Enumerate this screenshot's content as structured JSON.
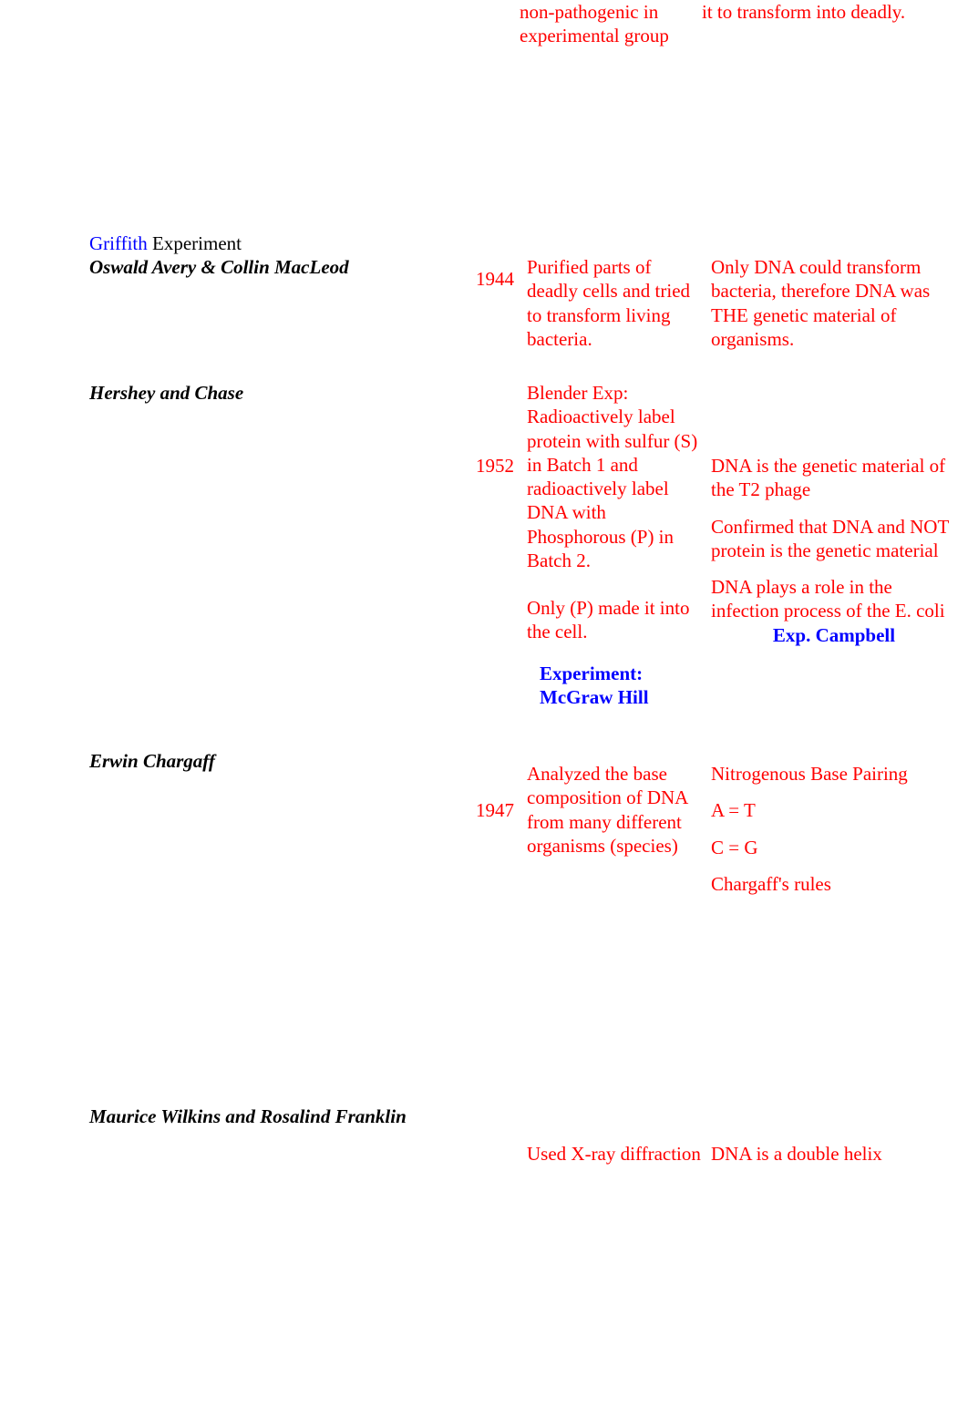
{
  "fragment": {
    "col3": "non-pathogenic in experimental group",
    "col4": "it to transform into deadly."
  },
  "griffith": {
    "link": "Griffith",
    "tail": " Experiment"
  },
  "avery": {
    "name": "Oswald Avery & Collin MacLeod",
    "year": "1944",
    "exp": "Purified parts of deadly cells and tried to transform living bacteria.",
    "result": "Only DNA could transform bacteria, therefore DNA was THE genetic material of organisms."
  },
  "hershey": {
    "name": "Hershey and Chase",
    "year": "1952",
    "exp_p1": "Blender Exp: Radioactively label protein with sulfur (S) in Batch 1 and radioactively label DNA with Phosphorous (P) in Batch 2.",
    "exp_p2": "Only (P) made it into the cell.",
    "res_p1": "DNA is the genetic material of the T2 phage",
    "res_p2": "Confirmed that DNA and NOT protein is the genetic material",
    "res_p3": "DNA plays a role in the infection process of the E. coli",
    "link_exp": "Experiment: McGraw Hill",
    "link_campbell": "Exp. Campbell"
  },
  "chargaff": {
    "name": "Erwin Chargaff",
    "year": "1947",
    "exp": "Analyzed the base composition of DNA from many different organisms (species)",
    "res_l1": "Nitrogenous Base Pairing",
    "res_l2": "A  =  T",
    "res_l3": "C  =  G",
    "res_l4": "Chargaff's rules"
  },
  "wilkins": {
    "name": "Maurice Wilkins and Rosalind Franklin",
    "exp": "Used X-ray diffraction",
    "res": "DNA is a double helix"
  }
}
